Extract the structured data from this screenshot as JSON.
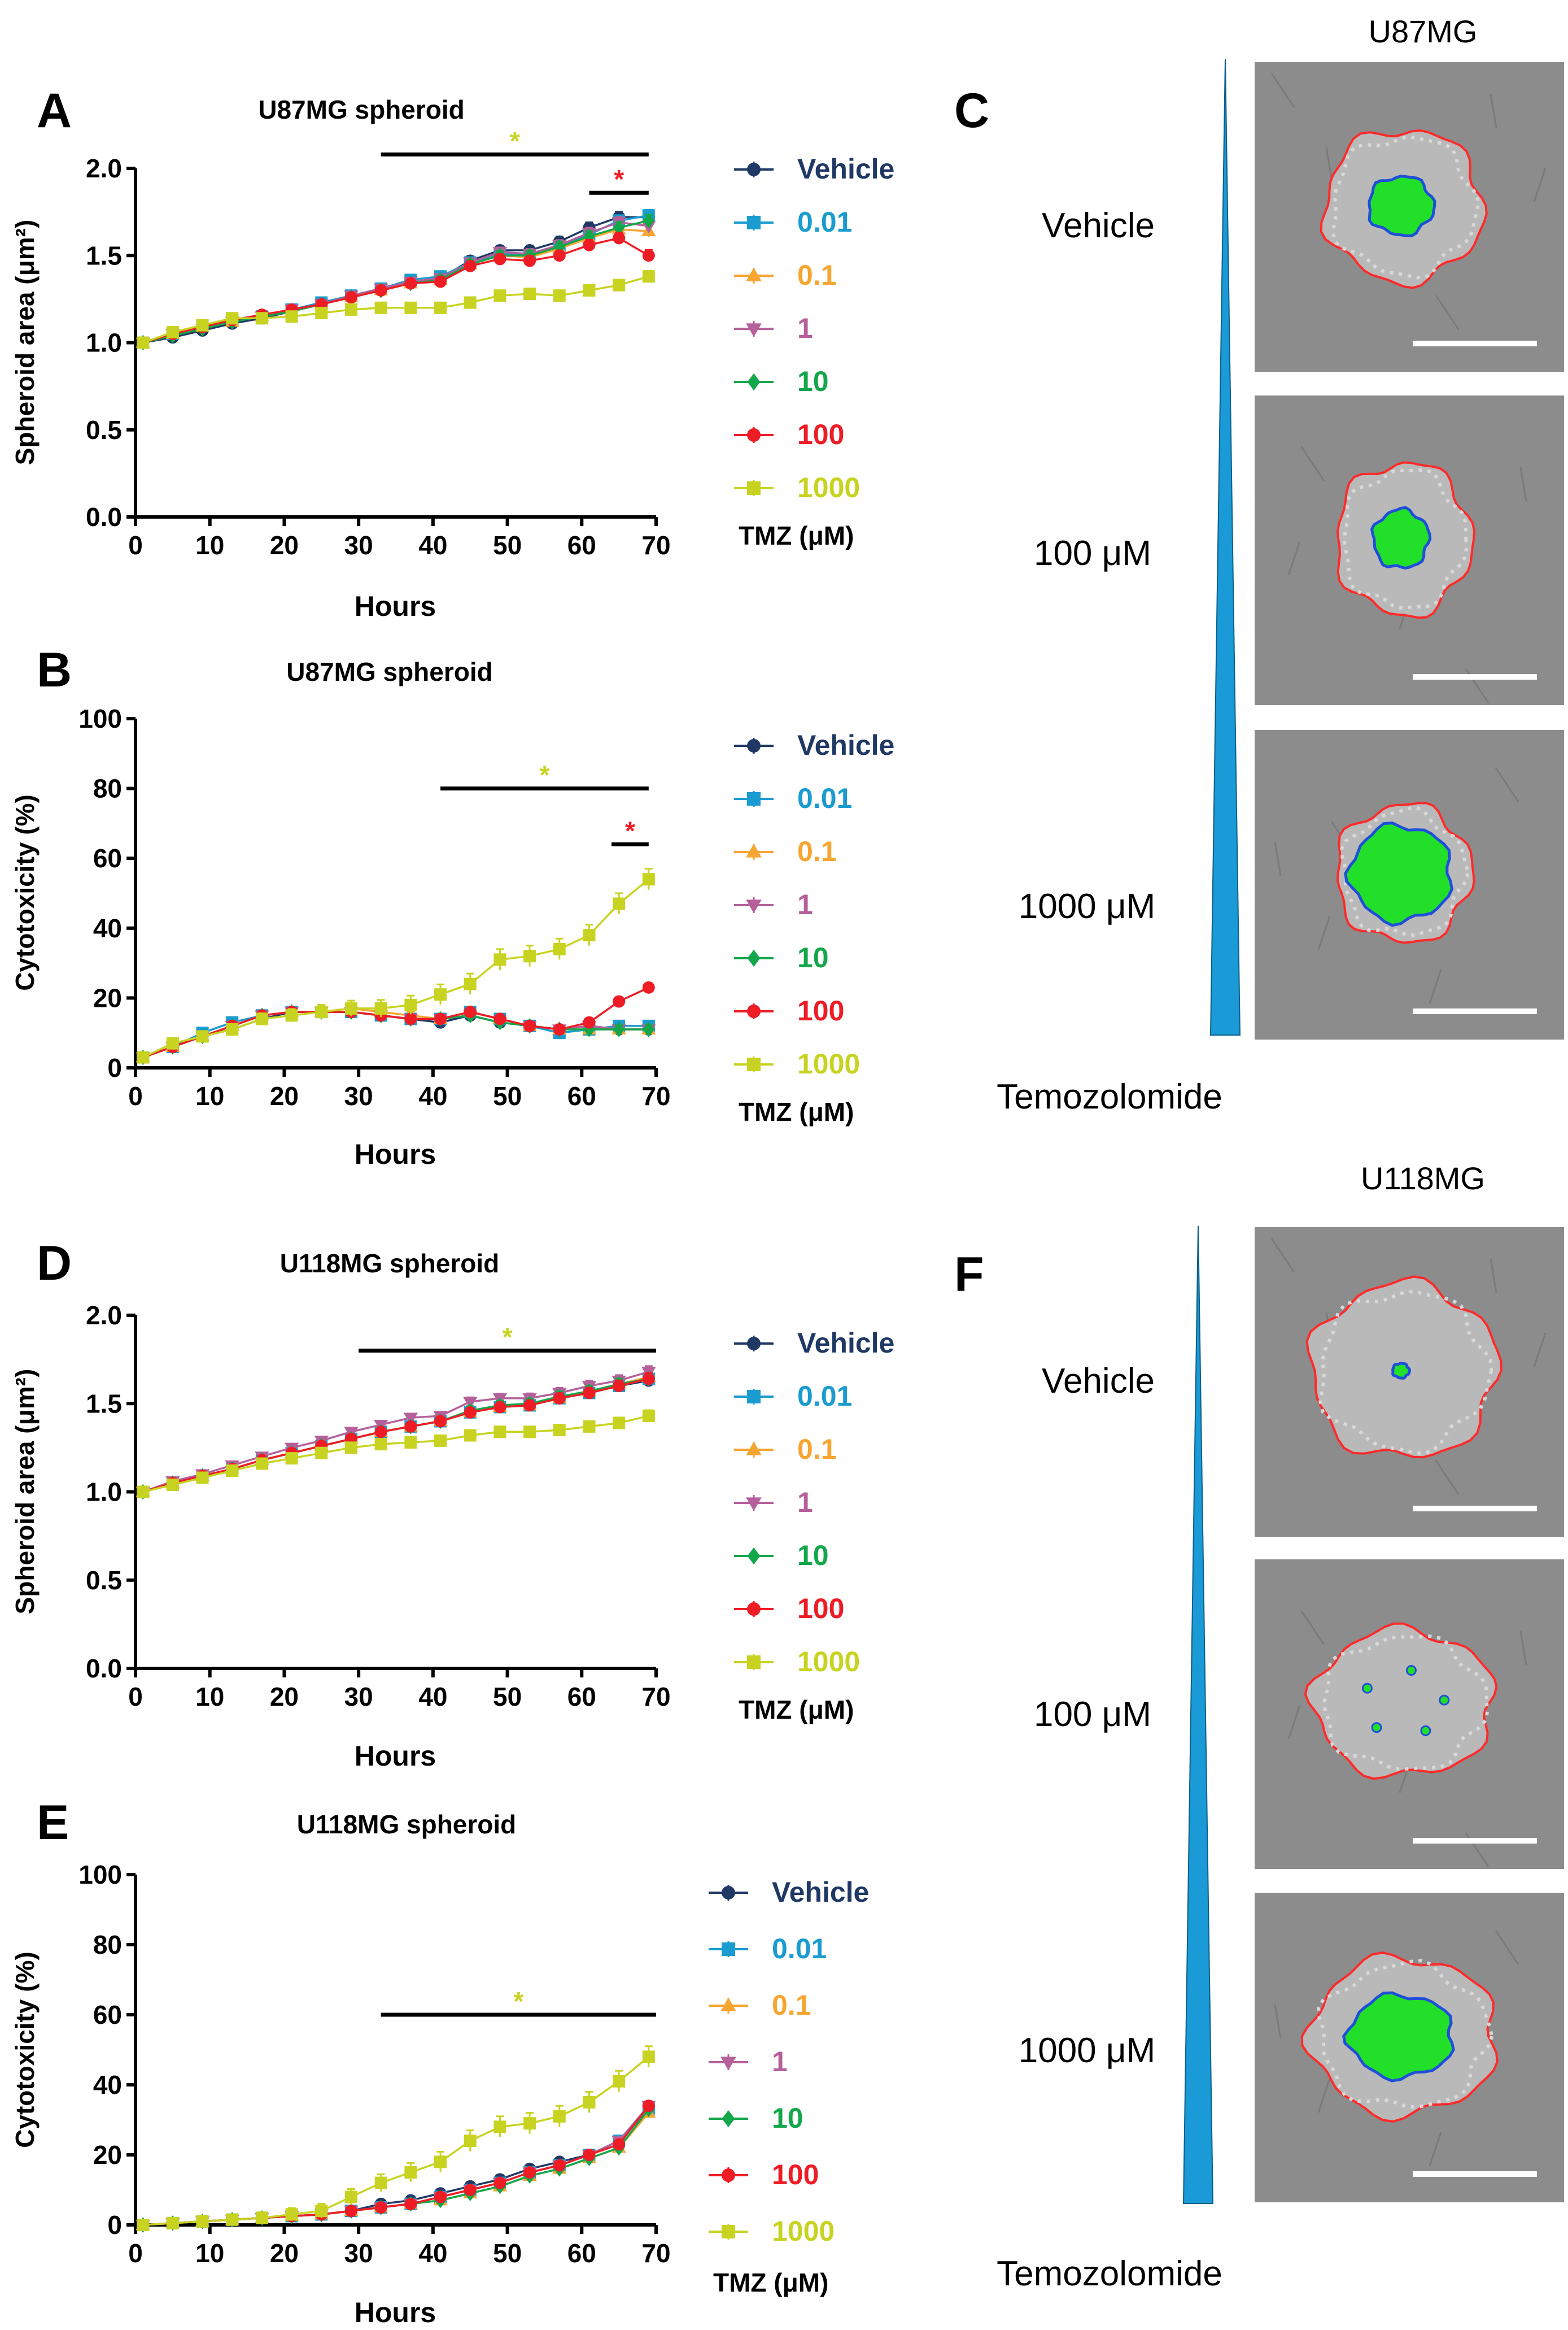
{
  "figure": {
    "series_names": [
      "Vehicle",
      "0.01",
      "0.1",
      "1",
      "10",
      "100",
      "1000"
    ],
    "series_colors": [
      "#1f3864",
      "#1a9cd0",
      "#f7a531",
      "#b5609a",
      "#13a74b",
      "#ee1c25",
      "#c8d321"
    ],
    "legend_title": "TMZ (μM)",
    "star_symbol": "*",
    "star_colors": {
      "yellow": "#c8d321",
      "red": "#ee1c25"
    },
    "right_panels": [
      {
        "letter": "C",
        "cell_line": "U87MG",
        "labels": [
          "Vehicle",
          "100 μM",
          "1000 μM"
        ],
        "drug": "Temozolomide",
        "gradient_color": "#1a9ad6"
      },
      {
        "letter": "F",
        "cell_line": "U118MG",
        "labels": [
          "Vehicle",
          "100 μM",
          "1000 μM"
        ],
        "drug": "Temozolomide",
        "gradient_color": "#1a9ad6"
      }
    ]
  },
  "chart_data": [
    {
      "panel": "A",
      "type": "line",
      "title": "U87MG spheroid",
      "xlabel": "Hours",
      "ylabel": "Spheroid area (μm²)",
      "xlim": [
        0,
        70
      ],
      "ylim": [
        0,
        2.0
      ],
      "xticks": [
        0,
        10,
        20,
        30,
        40,
        50,
        60,
        70
      ],
      "yticks": [
        0.0,
        0.5,
        1.0,
        1.5,
        2.0
      ],
      "yticklabels": [
        "0.0",
        "0.5",
        "1.0",
        "1.5",
        "2.0"
      ],
      "x": [
        1,
        5,
        9,
        13,
        17,
        21,
        25,
        29,
        33,
        37,
        41,
        45,
        49,
        53,
        57,
        61,
        65,
        69
      ],
      "series": [
        {
          "name": "Vehicle",
          "values": [
            1.0,
            1.03,
            1.07,
            1.11,
            1.14,
            1.18,
            1.22,
            1.27,
            1.31,
            1.36,
            1.37,
            1.47,
            1.53,
            1.53,
            1.58,
            1.66,
            1.72,
            1.72
          ]
        },
        {
          "name": "0.01",
          "values": [
            1.0,
            1.05,
            1.1,
            1.13,
            1.15,
            1.19,
            1.23,
            1.27,
            1.31,
            1.36,
            1.38,
            1.46,
            1.51,
            1.5,
            1.55,
            1.62,
            1.7,
            1.73
          ]
        },
        {
          "name": "0.1",
          "values": [
            1.0,
            1.05,
            1.09,
            1.12,
            1.15,
            1.18,
            1.22,
            1.26,
            1.3,
            1.34,
            1.36,
            1.45,
            1.5,
            1.49,
            1.54,
            1.6,
            1.65,
            1.64
          ]
        },
        {
          "name": "1",
          "values": [
            1.0,
            1.05,
            1.08,
            1.12,
            1.15,
            1.19,
            1.22,
            1.27,
            1.31,
            1.35,
            1.37,
            1.46,
            1.52,
            1.51,
            1.56,
            1.63,
            1.69,
            1.67
          ]
        },
        {
          "name": "10",
          "values": [
            1.0,
            1.04,
            1.08,
            1.12,
            1.15,
            1.18,
            1.22,
            1.26,
            1.3,
            1.34,
            1.36,
            1.45,
            1.5,
            1.5,
            1.55,
            1.61,
            1.66,
            1.7
          ]
        },
        {
          "name": "100",
          "values": [
            1.0,
            1.05,
            1.09,
            1.13,
            1.16,
            1.19,
            1.22,
            1.26,
            1.3,
            1.34,
            1.35,
            1.44,
            1.48,
            1.47,
            1.5,
            1.56,
            1.6,
            1.5
          ]
        },
        {
          "name": "1000",
          "values": [
            1.0,
            1.06,
            1.1,
            1.14,
            1.14,
            1.15,
            1.17,
            1.19,
            1.2,
            1.2,
            1.2,
            1.23,
            1.27,
            1.28,
            1.27,
            1.3,
            1.33,
            1.38
          ]
        }
      ],
      "significance": [
        {
          "x_start": 33,
          "x_end": 69,
          "y": 2.08,
          "color": "yellow"
        },
        {
          "x_start": 61,
          "x_end": 69,
          "y": 1.86,
          "color": "red"
        }
      ]
    },
    {
      "panel": "B",
      "type": "line",
      "title": "U87MG spheroid",
      "xlabel": "Hours",
      "ylabel": "Cytotoxicity (%)",
      "xlim": [
        0,
        70
      ],
      "ylim": [
        0,
        100
      ],
      "xticks": [
        0,
        10,
        20,
        30,
        40,
        50,
        60,
        70
      ],
      "yticks": [
        0,
        20,
        40,
        60,
        80,
        100
      ],
      "yticklabels": [
        "0",
        "20",
        "40",
        "60",
        "80",
        "100"
      ],
      "x": [
        1,
        5,
        9,
        13,
        17,
        21,
        25,
        29,
        33,
        37,
        41,
        45,
        49,
        53,
        57,
        61,
        65,
        69
      ],
      "series": [
        {
          "name": "Vehicle",
          "values": [
            3,
            6,
            9,
            11,
            14,
            16,
            16,
            16,
            15,
            14,
            13,
            15,
            13,
            12,
            11,
            12,
            11,
            11
          ]
        },
        {
          "name": "0.01",
          "values": [
            3,
            6,
            10,
            13,
            15,
            16,
            16,
            16,
            15,
            14,
            14,
            16,
            14,
            12,
            10,
            11,
            12,
            12
          ]
        },
        {
          "name": "0.1",
          "values": [
            3,
            6,
            9,
            12,
            15,
            16,
            16,
            17,
            16,
            15,
            14,
            16,
            14,
            12,
            11,
            11,
            11,
            11
          ]
        },
        {
          "name": "1",
          "values": [
            3,
            6,
            9,
            12,
            15,
            16,
            16,
            16,
            15,
            14,
            14,
            15,
            13,
            12,
            11,
            12,
            11,
            11
          ]
        },
        {
          "name": "10",
          "values": [
            3,
            6,
            9,
            12,
            15,
            16,
            16,
            16,
            15,
            14,
            14,
            15,
            13,
            12,
            11,
            11,
            11,
            11
          ]
        },
        {
          "name": "100",
          "values": [
            3,
            6,
            9,
            12,
            15,
            16,
            16,
            16,
            15,
            14,
            14,
            16,
            14,
            12,
            11,
            13,
            19,
            23
          ]
        },
        {
          "name": "1000",
          "values": [
            3,
            7,
            9,
            11,
            14,
            15,
            16,
            17,
            17,
            18,
            21,
            24,
            31,
            32,
            34,
            38,
            47,
            54
          ]
        }
      ],
      "significance": [
        {
          "x_start": 41,
          "x_end": 69,
          "y": 80,
          "color": "yellow"
        },
        {
          "x_start": 64,
          "x_end": 69,
          "y": 64,
          "color": "red"
        }
      ]
    },
    {
      "panel": "D",
      "type": "line",
      "title": "U118MG spheroid",
      "xlabel": "Hours",
      "ylabel": "Spheroid area (μm²)",
      "xlim": [
        0,
        70
      ],
      "ylim": [
        0,
        2.0
      ],
      "xticks": [
        0,
        10,
        20,
        30,
        40,
        50,
        60,
        70
      ],
      "yticks": [
        0.0,
        0.5,
        1.0,
        1.5,
        2.0
      ],
      "yticklabels": [
        "0.0",
        "0.5",
        "1.0",
        "1.5",
        "2.0"
      ],
      "x": [
        1,
        5,
        9,
        13,
        17,
        21,
        25,
        29,
        33,
        37,
        41,
        45,
        49,
        53,
        57,
        61,
        65,
        69
      ],
      "series": [
        {
          "name": "Vehicle",
          "values": [
            1.0,
            1.05,
            1.09,
            1.13,
            1.18,
            1.22,
            1.26,
            1.3,
            1.34,
            1.37,
            1.4,
            1.45,
            1.48,
            1.49,
            1.53,
            1.56,
            1.6,
            1.63
          ]
        },
        {
          "name": "0.01",
          "values": [
            1.0,
            1.05,
            1.09,
            1.13,
            1.18,
            1.22,
            1.26,
            1.3,
            1.34,
            1.37,
            1.4,
            1.45,
            1.48,
            1.49,
            1.53,
            1.56,
            1.6,
            1.64
          ]
        },
        {
          "name": "0.1",
          "values": [
            1.0,
            1.05,
            1.09,
            1.13,
            1.18,
            1.22,
            1.26,
            1.3,
            1.34,
            1.37,
            1.4,
            1.45,
            1.48,
            1.49,
            1.53,
            1.57,
            1.61,
            1.65
          ]
        },
        {
          "name": "1",
          "values": [
            1.0,
            1.06,
            1.1,
            1.15,
            1.2,
            1.25,
            1.29,
            1.34,
            1.38,
            1.42,
            1.43,
            1.51,
            1.53,
            1.53,
            1.56,
            1.6,
            1.63,
            1.68
          ]
        },
        {
          "name": "10",
          "values": [
            1.0,
            1.05,
            1.09,
            1.13,
            1.18,
            1.22,
            1.26,
            1.3,
            1.34,
            1.37,
            1.4,
            1.46,
            1.49,
            1.5,
            1.54,
            1.57,
            1.61,
            1.64
          ]
        },
        {
          "name": "100",
          "values": [
            1.0,
            1.05,
            1.09,
            1.13,
            1.18,
            1.22,
            1.26,
            1.3,
            1.34,
            1.37,
            1.4,
            1.45,
            1.48,
            1.49,
            1.53,
            1.56,
            1.6,
            1.64
          ]
        },
        {
          "name": "1000",
          "values": [
            1.0,
            1.04,
            1.08,
            1.12,
            1.16,
            1.19,
            1.22,
            1.25,
            1.27,
            1.28,
            1.29,
            1.32,
            1.34,
            1.34,
            1.35,
            1.37,
            1.39,
            1.43
          ]
        }
      ],
      "significance": [
        {
          "x_start": 30,
          "x_end": 70,
          "y": 1.8,
          "color": "yellow"
        }
      ]
    },
    {
      "panel": "E",
      "type": "line",
      "title": "U118MG spheroid",
      "xlabel": "Hours",
      "ylabel": "Cytotoxicity (%)",
      "xlim": [
        0,
        70
      ],
      "ylim": [
        0,
        100
      ],
      "xticks": [
        0,
        10,
        20,
        30,
        40,
        50,
        60,
        70
      ],
      "yticks": [
        0,
        20,
        40,
        60,
        80,
        100
      ],
      "yticklabels": [
        "0",
        "20",
        "40",
        "60",
        "80",
        "100"
      ],
      "x": [
        1,
        5,
        9,
        13,
        17,
        21,
        25,
        29,
        33,
        37,
        41,
        45,
        49,
        53,
        57,
        61,
        65,
        69
      ],
      "series": [
        {
          "name": "Vehicle",
          "values": [
            0,
            0.5,
            1,
            1.5,
            2,
            2.5,
            3,
            4,
            6,
            7,
            9,
            11,
            13,
            16,
            18,
            20,
            24,
            34
          ]
        },
        {
          "name": "0.01",
          "values": [
            0,
            0.5,
            1,
            1.5,
            2,
            2.5,
            3,
            4,
            5,
            6,
            8,
            10,
            12,
            15,
            17,
            20,
            24,
            33
          ]
        },
        {
          "name": "0.1",
          "values": [
            0,
            0.5,
            1,
            1.5,
            2,
            2.5,
            3,
            4,
            5,
            6,
            7,
            9,
            11,
            14,
            16,
            19,
            22,
            32
          ]
        },
        {
          "name": "1",
          "values": [
            0,
            0.5,
            1,
            1.5,
            2,
            2.5,
            3,
            4,
            5,
            6,
            8,
            10,
            12,
            15,
            17,
            20,
            24,
            34
          ]
        },
        {
          "name": "10",
          "values": [
            0,
            0.5,
            1,
            1.5,
            2,
            2.5,
            3,
            4,
            5,
            6,
            7,
            9,
            11,
            14,
            16,
            19,
            22,
            33
          ]
        },
        {
          "name": "100",
          "values": [
            0,
            0.5,
            1,
            1.5,
            2,
            2.5,
            3,
            4,
            5,
            6,
            8,
            10,
            12,
            15,
            17,
            20,
            23,
            34
          ]
        },
        {
          "name": "1000",
          "values": [
            0,
            0.5,
            1,
            1.5,
            2,
            3,
            4,
            8,
            12,
            15,
            18,
            24,
            28,
            29,
            31,
            35,
            41,
            48
          ]
        }
      ],
      "significance": [
        {
          "x_start": 33,
          "x_end": 70,
          "y": 60,
          "color": "yellow"
        }
      ]
    }
  ]
}
